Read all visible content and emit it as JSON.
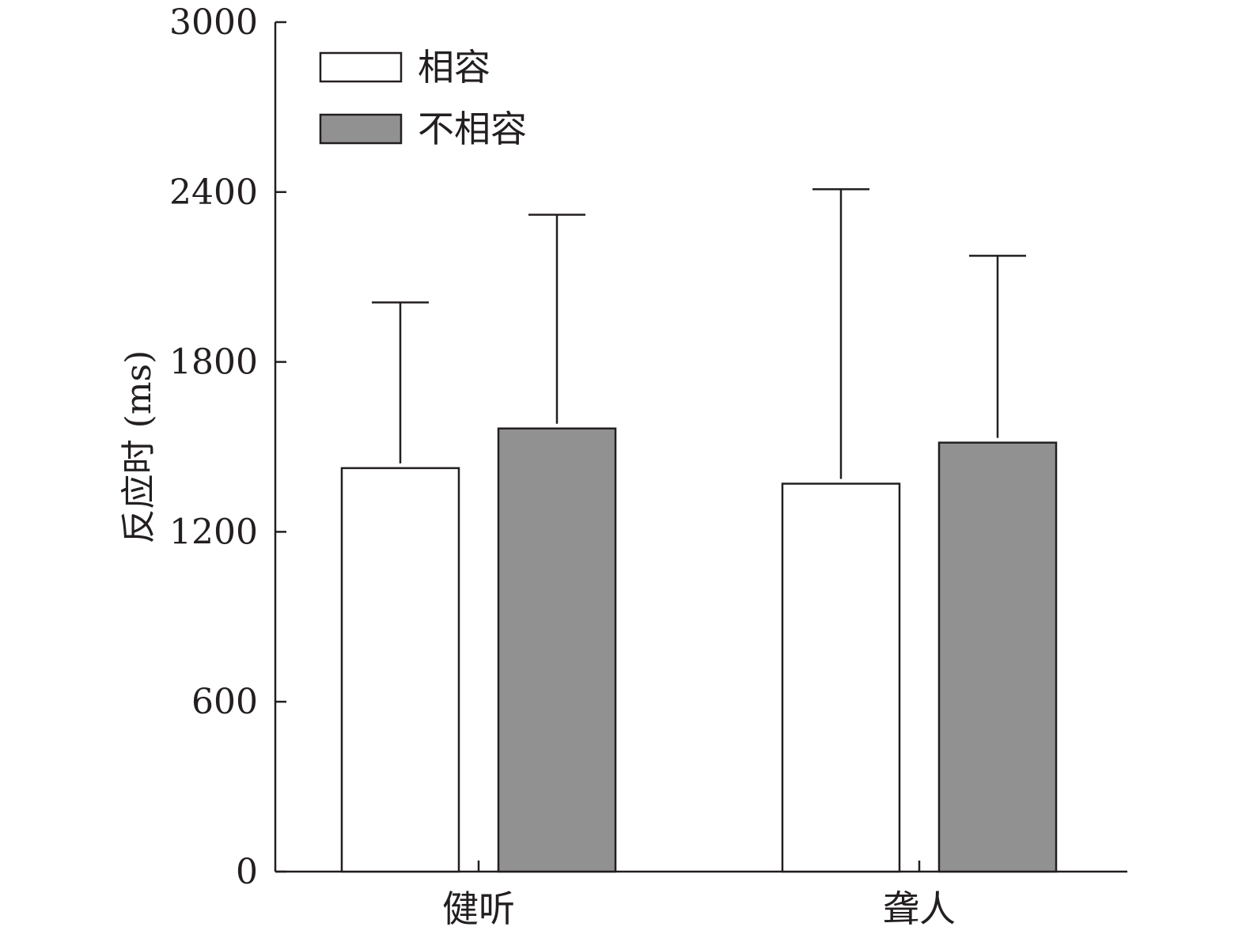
{
  "chart_data": {
    "type": "bar",
    "title": "",
    "xlabel": "",
    "ylabel": "反应时 (ms)",
    "ylim": [
      0,
      3000
    ],
    "yticks": [
      "0",
      "600",
      "1200",
      "1800",
      "2400",
      "3000"
    ],
    "categories": [
      "健听",
      "聋人"
    ],
    "series": [
      {
        "name": "相容",
        "values": [
          1425,
          1370
        ],
        "errors": [
          585,
          1040
        ],
        "color": "#ffffff"
      },
      {
        "name": "不相容",
        "values": [
          1565,
          1515
        ],
        "errors": [
          755,
          660
        ],
        "color": "#929191"
      }
    ],
    "legend": "top-left",
    "grid": false
  }
}
